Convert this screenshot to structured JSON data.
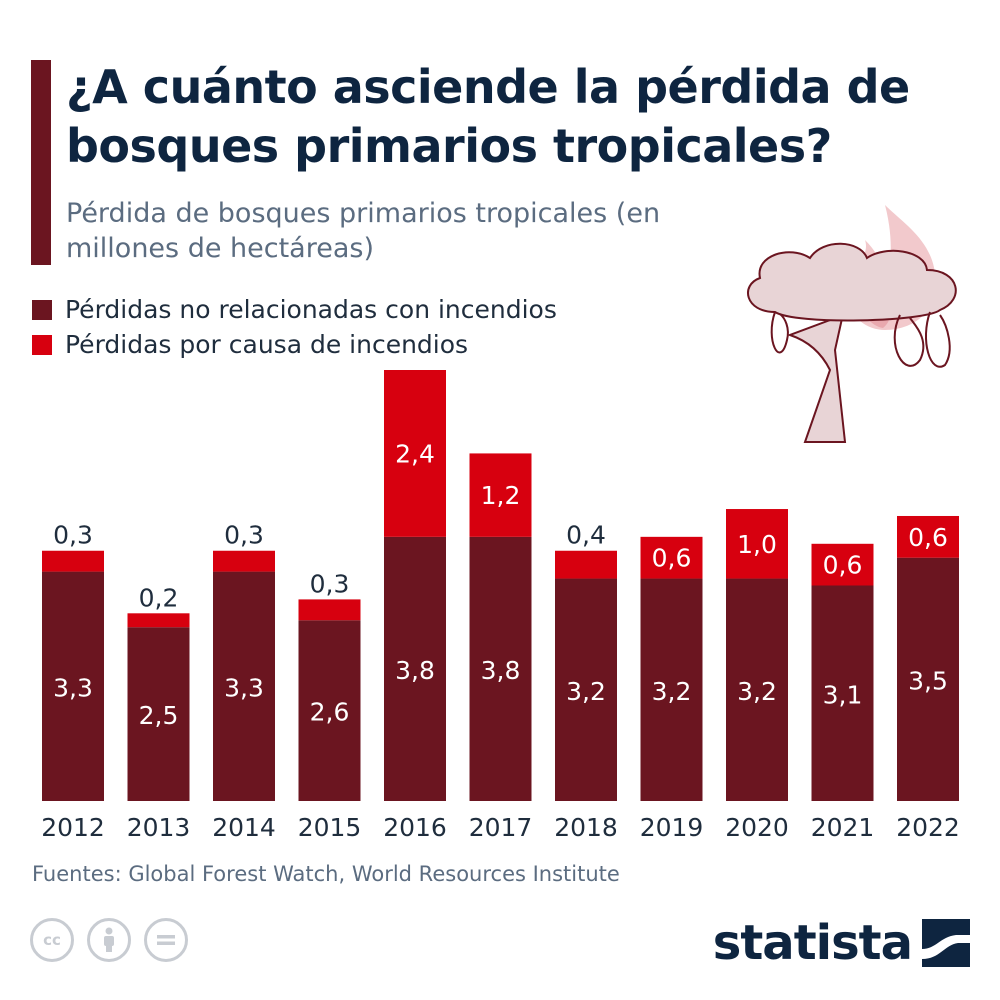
{
  "header": {
    "title": "¿A cuánto asciende la pérdida de bosques primarios tropicales?",
    "subtitle": "Pérdida de bosques primarios tropicales (en millones de hectáreas)"
  },
  "colors": {
    "accent": "#6b1520",
    "non_fire": "#6b1520",
    "fire": "#d7000f",
    "title": "#0e2540",
    "muted": "#5b6c80"
  },
  "legend": [
    {
      "label": "Pérdidas no relacionadas con incendios",
      "color": "#6b1520"
    },
    {
      "label": "Pérdidas por causa de incendios",
      "color": "#d7000f"
    }
  ],
  "chart_data": {
    "type": "bar",
    "stacked": true,
    "categories": [
      "2012",
      "2013",
      "2014",
      "2015",
      "2016",
      "2017",
      "2018",
      "2019",
      "2020",
      "2021",
      "2022"
    ],
    "series": [
      {
        "name": "Pérdidas no relacionadas con incendios",
        "values": [
          3.3,
          2.5,
          3.3,
          2.6,
          3.8,
          3.8,
          3.2,
          3.2,
          3.2,
          3.1,
          3.5
        ],
        "labels": [
          "3,3",
          "2,5",
          "3,3",
          "2,6",
          "3,8",
          "3,8",
          "3,2",
          "3,2",
          "3,2",
          "3,1",
          "3,5"
        ]
      },
      {
        "name": "Pérdidas por causa de incendios",
        "values": [
          0.3,
          0.2,
          0.3,
          0.3,
          2.4,
          1.2,
          0.4,
          0.6,
          1.0,
          0.6,
          0.6
        ],
        "labels": [
          "0,3",
          "0,2",
          "0,3",
          "0,3",
          "2,4",
          "1,2",
          "0,4",
          "0,6",
          "1,0",
          "0,6",
          "0,6"
        ]
      }
    ],
    "ylim": [
      0,
      6.2
    ],
    "grid": false
  },
  "footer": {
    "source": "Fuentes: Global Forest Watch, World Resources Institute",
    "license_icons": [
      "cc-icon",
      "attribution-icon",
      "no-derivatives-icon"
    ],
    "brand": "statista"
  },
  "illustration": {
    "icon": "burning-tree-icon"
  }
}
